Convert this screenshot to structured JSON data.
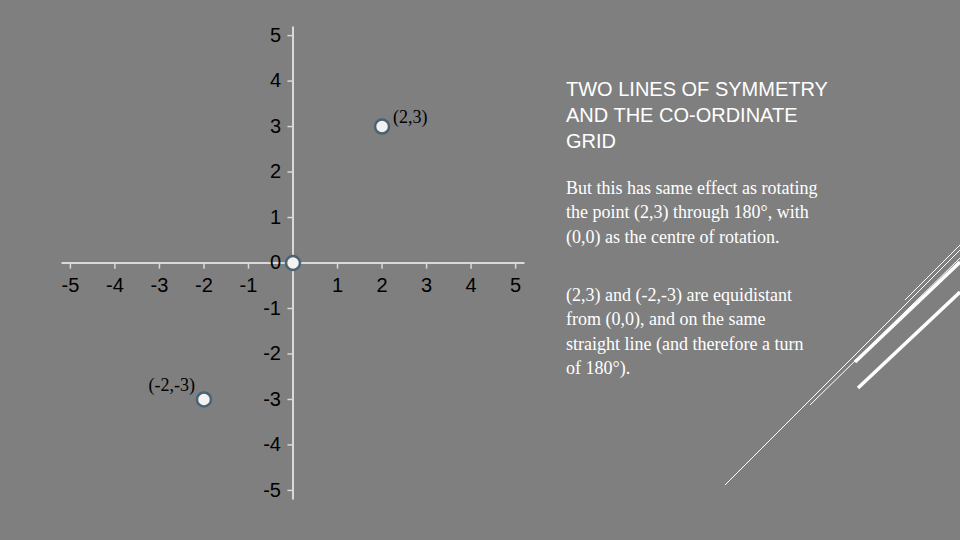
{
  "chart_data": {
    "type": "scatter",
    "title": "TWO LINES OF SYMMETRY AND THE CO-ORDINATE GRID",
    "annotations": [
      "But this has same effect as rotating the point (2,3) through 180°, with (0,0) as the centre of rotation.",
      "(2,3) and (-2,-3) are equidistant from (0,0), and on the same straight line (and therefore a turn of 180°)."
    ],
    "x": [
      2,
      -2,
      0
    ],
    "values": [
      3,
      -3,
      0
    ],
    "point_labels": [
      "(2,3)",
      "(-2,-3)",
      null
    ],
    "color": "#4a6272",
    "marker": "circle",
    "xlim": [
      -5.2,
      5.2
    ],
    "ylim": [
      -5.2,
      5.2
    ],
    "xticks": [
      -5,
      -4,
      -3,
      -2,
      -1,
      1,
      2,
      3,
      4,
      5
    ],
    "yticks": [
      -5,
      -4,
      -3,
      -2,
      -1,
      0,
      1,
      2,
      3,
      4,
      5
    ],
    "grid": false
  }
}
